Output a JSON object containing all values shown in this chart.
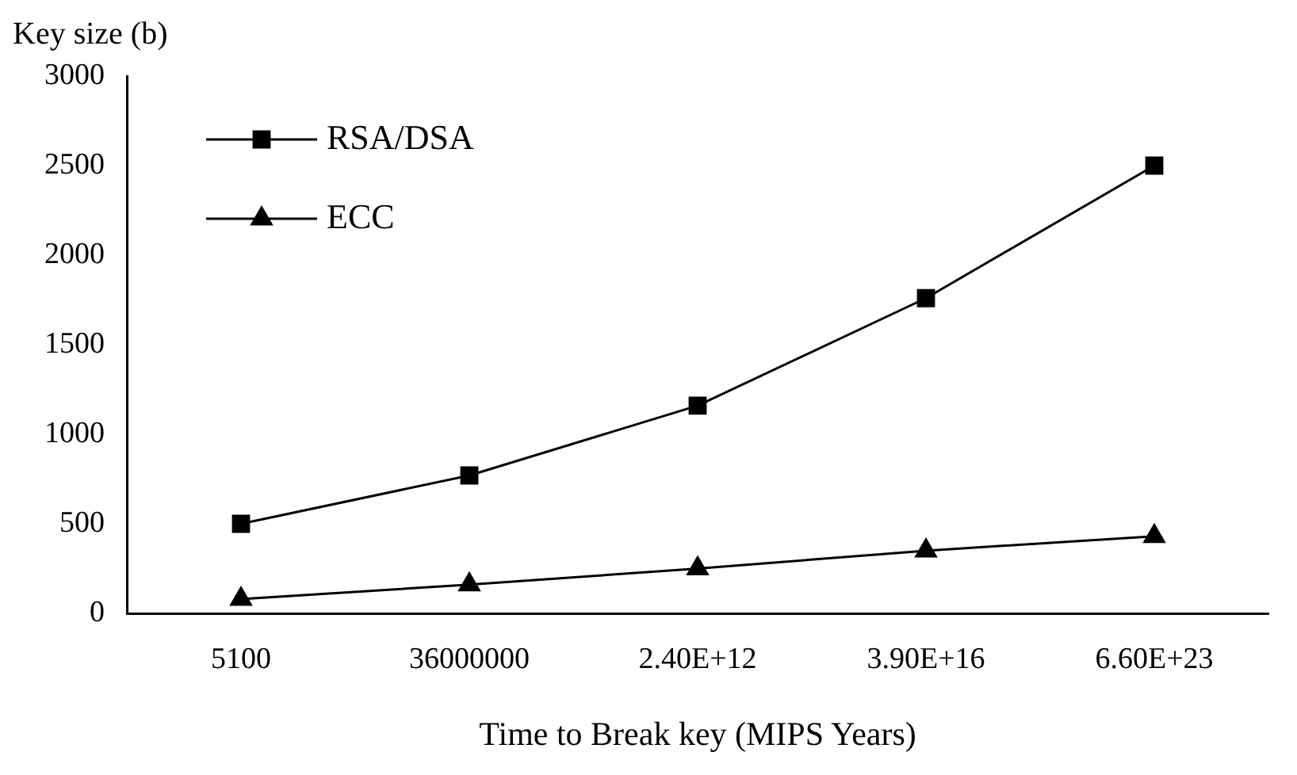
{
  "chart_data": {
    "type": "line",
    "ylabel": "Key size (b)",
    "xlabel": "Time to Break key (MIPS Years)",
    "categories": [
      "5100",
      "36000000",
      "2.40E+12",
      "3.90E+16",
      "6.60E+23"
    ],
    "series": [
      {
        "name": "RSA/DSA",
        "color": "#000000",
        "marker": "square",
        "values": [
          500,
          770,
          1160,
          1760,
          2500
        ]
      },
      {
        "name": "ECC",
        "color": "#000000",
        "marker": "triangle",
        "values": [
          80,
          160,
          250,
          350,
          430
        ]
      }
    ],
    "ylim": [
      0,
      3000
    ],
    "yticks": [
      0,
      500,
      1000,
      1500,
      2000,
      2500,
      3000
    ],
    "grid": false,
    "legend": "top left",
    "line_style": "solid"
  }
}
